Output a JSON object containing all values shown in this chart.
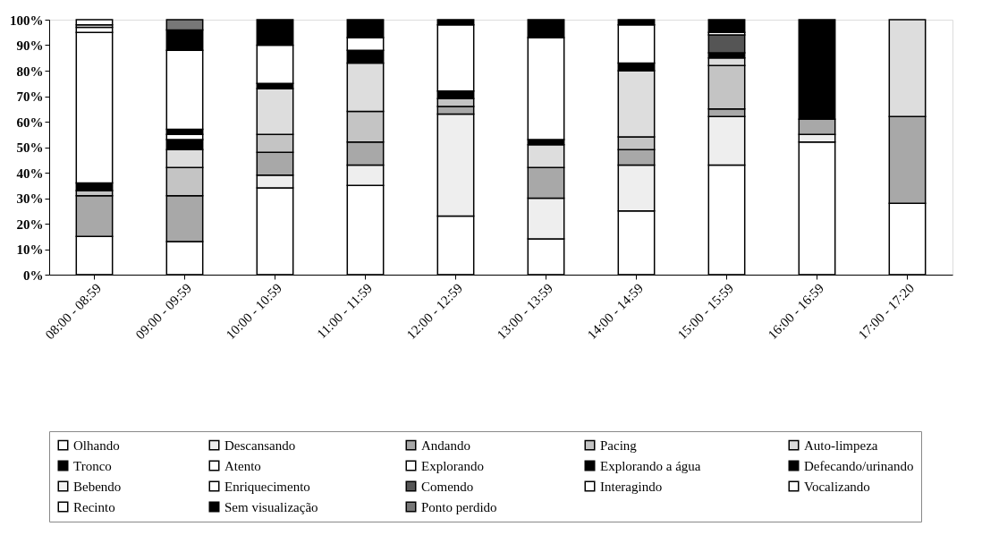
{
  "chart_data": {
    "type": "bar",
    "stacked": true,
    "legend": "bottom",
    "grid": false,
    "categories": [
      "08:00 - 08:59",
      "09:00 - 09:59",
      "10:00 - 10:59",
      "11:00 - 11:59",
      "12:00 - 12:59",
      "13:00 - 13:59",
      "14:00 - 14:59",
      "15:00 - 15:59",
      "16:00 - 16:59",
      "17:00 - 17:20"
    ],
    "ylim": [
      0,
      100
    ],
    "yticks": [
      {
        "value": 0,
        "label": "0%"
      },
      {
        "value": 10,
        "label": "10%"
      },
      {
        "value": 20,
        "label": "20%"
      },
      {
        "value": 30,
        "label": "30%"
      },
      {
        "value": 40,
        "label": "40%"
      },
      {
        "value": 50,
        "label": "50%"
      },
      {
        "value": 60,
        "label": "60%"
      },
      {
        "value": 70,
        "label": "70%"
      },
      {
        "value": 80,
        "label": "80%"
      },
      {
        "value": 90,
        "label": "90%"
      },
      {
        "value": 100,
        "label": "100%"
      }
    ],
    "series": [
      {
        "name": "Olhando",
        "color": "#ffffff",
        "values": [
          15,
          13,
          34,
          35,
          23,
          14,
          25,
          43,
          52,
          28
        ]
      },
      {
        "name": "Descansando",
        "color": "#eeeeee",
        "values": [
          0,
          0,
          5,
          8,
          40,
          16,
          18,
          19,
          3,
          0
        ]
      },
      {
        "name": "Andando",
        "color": "#a8a8a8",
        "values": [
          16,
          18,
          9,
          9,
          3,
          12,
          6,
          3,
          6,
          34
        ]
      },
      {
        "name": "Pacing",
        "color": "#c4c4c4",
        "values": [
          2,
          11,
          7,
          12,
          3,
          0,
          5,
          17,
          0,
          0
        ]
      },
      {
        "name": "Auto-limpeza",
        "color": "#dddddd",
        "values": [
          0,
          7,
          18,
          19,
          0,
          9,
          26,
          3,
          0,
          38
        ]
      },
      {
        "name": "Tronco",
        "color": "#000000",
        "values": [
          3,
          4,
          2,
          5,
          3,
          2,
          3,
          2,
          0,
          0
        ]
      },
      {
        "name": "Atento",
        "color": "#ffffff",
        "values": [
          59,
          2,
          0,
          0,
          0,
          0,
          0,
          0,
          0,
          0
        ]
      },
      {
        "name": "Explorando",
        "color": "#ffffff",
        "values": [
          2,
          0,
          0,
          0,
          0,
          0,
          0,
          0,
          0,
          0
        ]
      },
      {
        "name": "Explorando a água",
        "color": "#000000",
        "values": [
          0,
          2,
          0,
          0,
          0,
          0,
          0,
          0,
          0,
          0
        ]
      },
      {
        "name": "Defecando/urinando",
        "color": "#000000",
        "values": [
          0,
          0,
          0,
          0,
          0,
          0,
          0,
          0,
          0,
          0
        ]
      },
      {
        "name": "Bebendo",
        "color": "#f2f2f2",
        "values": [
          0,
          0,
          0,
          0,
          0,
          0,
          0,
          0,
          0,
          0
        ]
      },
      {
        "name": "Enriquecimento",
        "color": "#ffffff",
        "values": [
          1,
          31,
          15,
          5,
          26,
          40,
          15,
          0,
          0,
          0
        ]
      },
      {
        "name": "Comendo",
        "color": "#555555",
        "values": [
          0,
          0,
          0,
          0,
          0,
          0,
          0,
          7,
          0,
          0
        ]
      },
      {
        "name": "Interagindo",
        "color": "#ffffff",
        "values": [
          0,
          0,
          0,
          0,
          0,
          0,
          0,
          0,
          0,
          0
        ]
      },
      {
        "name": "Vocalizando",
        "color": "#ffffff",
        "values": [
          0,
          0,
          0,
          0,
          0,
          0,
          0,
          1,
          0,
          0
        ]
      },
      {
        "name": "Recinto",
        "color": "#ffffff",
        "values": [
          2,
          0,
          0,
          0,
          0,
          0,
          0,
          0,
          0,
          0
        ]
      },
      {
        "name": "Sem visualização",
        "color": "#000000",
        "values": [
          0,
          8,
          10,
          7,
          2,
          7,
          2,
          5,
          39,
          0
        ]
      },
      {
        "name": "Ponto perdido",
        "color": "#777777",
        "values": [
          0,
          4,
          0,
          0,
          0,
          0,
          0,
          0,
          0,
          0
        ]
      }
    ]
  }
}
